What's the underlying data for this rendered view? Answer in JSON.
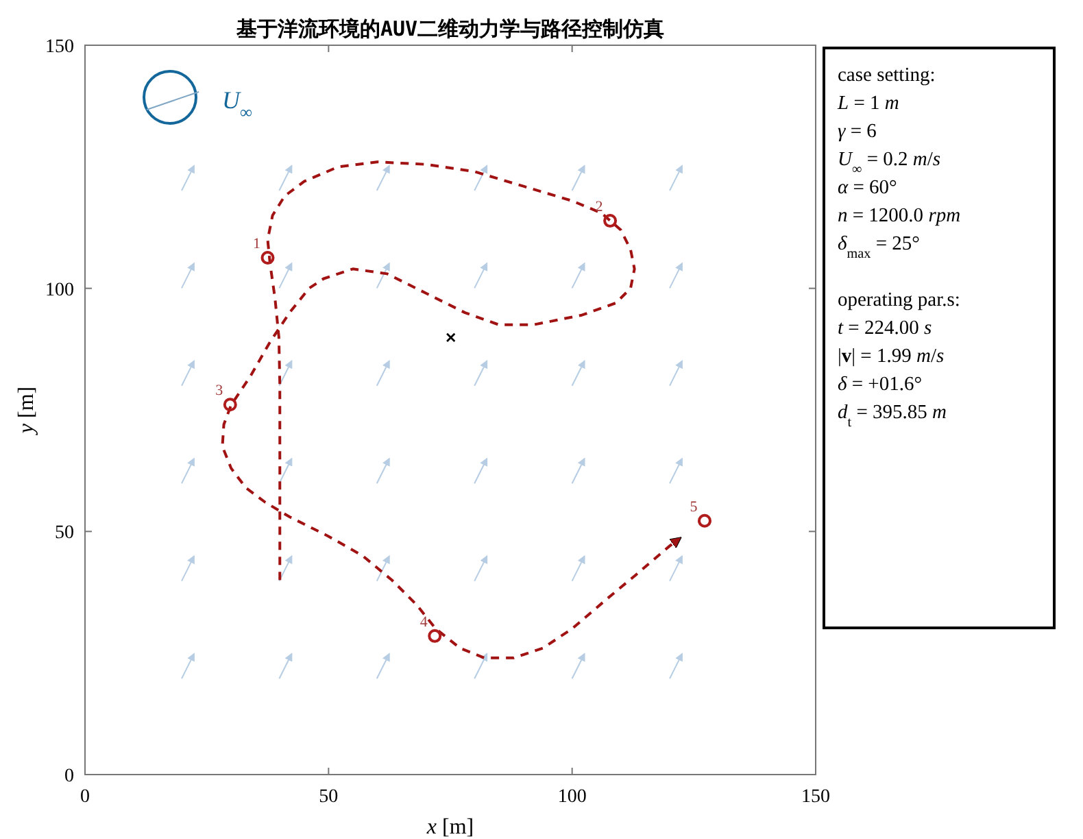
{
  "chart_data": {
    "type": "line",
    "title": "基于洋流环境的AUV二维动力学与路径控制仿真",
    "xlabel": "*x* [m]",
    "ylabel": "*y* [m]",
    "xlim": [
      0,
      150
    ],
    "ylim": [
      0,
      150
    ],
    "xticks": [
      0,
      50,
      100,
      150
    ],
    "yticks": [
      0,
      50,
      100,
      150
    ],
    "grid": false,
    "series": [
      {
        "color": "#a11212",
        "line_style": "dashed",
        "x": [
          40,
          40,
          40,
          40,
          40,
          39.8,
          39,
          38,
          37.5,
          38.5,
          41,
          45,
          52,
          60,
          70,
          80,
          90,
          100,
          106,
          110,
          112,
          112.8,
          112,
          109,
          102,
          92,
          85,
          78,
          70,
          62,
          55,
          49,
          46,
          42,
          38,
          34,
          30,
          28.5,
          28.2,
          30,
          33,
          37,
          42,
          50,
          57,
          63,
          68,
          72,
          77,
          82,
          88,
          94,
          100,
          107,
          113,
          120,
          122
        ],
        "values": [
          40,
          50,
          60,
          70,
          80,
          90,
          98,
          105,
          110,
          115,
          119,
          122,
          125,
          126,
          125.5,
          124,
          121,
          118,
          115.5,
          112,
          108,
          104,
          100,
          97,
          94.5,
          92.5,
          92.5,
          95,
          99,
          103,
          104,
          102,
          100,
          95,
          89,
          82,
          76,
          72,
          67.5,
          63,
          59,
          56,
          53,
          49,
          45,
          40,
          35,
          30,
          26,
          24,
          24,
          26,
          30,
          36,
          41,
          47,
          48.5
        ]
      },
      {
        "type": "scatter",
        "color": "#b01c1c",
        "marker": "circle",
        "x": [
          37.5,
          107.8,
          29.8,
          71.8,
          127.2
        ],
        "values": [
          106.3,
          113.9,
          76.1,
          28.5,
          52.2
        ]
      },
      {
        "type": "scatter",
        "color": "#000000",
        "marker": "cross",
        "x": [
          75.1
        ],
        "values": [
          89.9
        ]
      }
    ],
    "annotations": [
      {
        "text": "1",
        "x": 37.5,
        "y": 106.3
      },
      {
        "text": "2",
        "x": 107.8,
        "y": 113.9
      },
      {
        "text": "3",
        "x": 29.8,
        "y": 76.1
      },
      {
        "text": "4",
        "x": 71.8,
        "y": 28.5
      },
      {
        "text": "5",
        "x": 127.2,
        "y": 52.2
      },
      "*U*$_{∞}$",
      "case setting:",
      "*L* = 1 *m*",
      "*γ* = 6",
      "*U*$_{∞}$ = 0.2 *m*/*s*",
      "*α* = 60°",
      "*n* = 1200.0 *rpm*",
      "*δ*$_{max}$ = 25°",
      "operating par.s:",
      "*t* = 224.00 *s*",
      "|**v**| = 1.99 *m*/*s*",
      "*δ* = +01.6°",
      "*d*$_{t}$ = 395.85 *m*"
    ]
  }
}
